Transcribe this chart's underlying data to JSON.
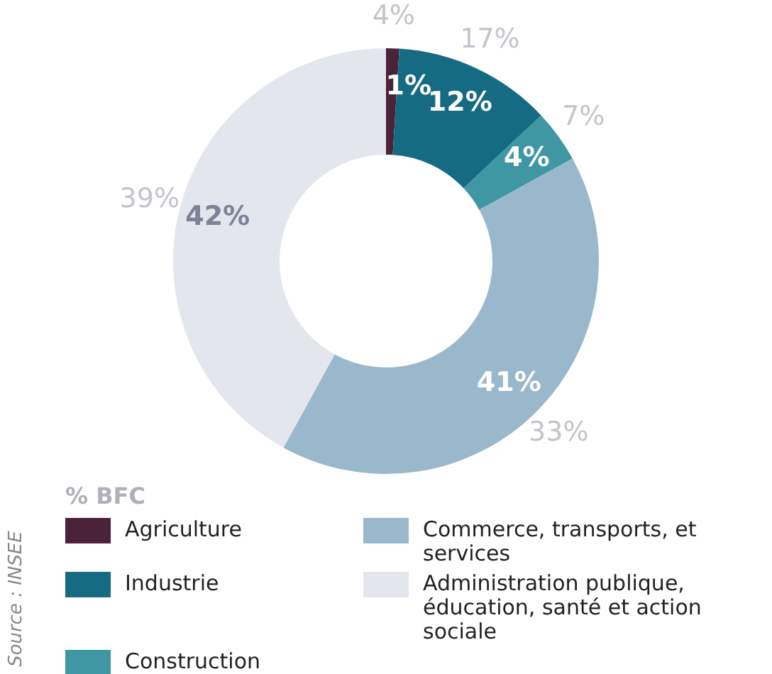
{
  "chart_data": {
    "type": "donut",
    "categories": [
      "Agriculture",
      "Industrie",
      "Construction",
      "Commerce, transports, et services",
      "Administration publique, éducation, santé et action sociale"
    ],
    "values": [
      1,
      12,
      4,
      41,
      42
    ],
    "value_labels": [
      "1%",
      "12%",
      "4%",
      "41%",
      "42%"
    ],
    "colors": [
      "#4a2239",
      "#156b82",
      "#3f97a3",
      "#9ab8cc",
      "#e4e6ee"
    ],
    "legend": "bottom",
    "legend_title": "%   BFC",
    "annotations": [
      {
        "text": "4%",
        "x": "Agriculture"
      },
      {
        "text": "17%",
        "x": "Industrie"
      },
      {
        "text": "7%",
        "x": "Construction"
      },
      {
        "text": "33%",
        "x": "Commerce, transports, et services"
      },
      {
        "text": "39%",
        "x": "Administration publique, éducation, santé et action sociale"
      },
      "Source : INSEE"
    ]
  }
}
